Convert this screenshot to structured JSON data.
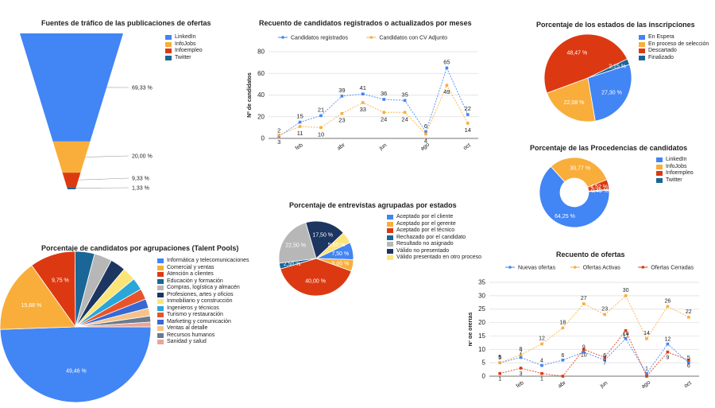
{
  "colors": {
    "blue": "#4285f4",
    "orange": "#f9ae3b",
    "red": "#dc3912",
    "teal": "#1a6696",
    "grid": "#dddddd",
    "axis": "#333333"
  },
  "funnel": {
    "title": "Fuentes de tráfico de las publicaciones de ofertas"
  },
  "line1": {
    "title": "Recuento de candidatos registrados o actualizados por meses",
    "ylabel": "Nº de candidatos"
  },
  "pie_states": {
    "title": "Porcentaje de los estados de las inscripciones"
  },
  "donut": {
    "title": "Porcentaje de las Procedencias de candidatos"
  },
  "pie_interviews": {
    "title": "Porcentaje de entrevistas agrupadas por estados"
  },
  "pie_talent": {
    "title": "Porcentaje de candidatos por agrupaciones (Talent Pools)"
  },
  "line2": {
    "title": "Recuento de ofertas",
    "ylabel": "Nº de ofertas"
  },
  "chart_data": [
    {
      "id": "funnel",
      "type": "funnel",
      "title": "Fuentes de tráfico de las publicaciones de ofertas",
      "categories": [
        "LinkedIn",
        "InfoJobs",
        "Infoempleo",
        "Twitter"
      ],
      "values": [
        69.33,
        20.0,
        9.33,
        1.33
      ],
      "labels": [
        "69,33 %",
        "20,00 %",
        "9,33 %",
        "1,33 %"
      ],
      "colors": [
        "#4285f4",
        "#f9ae3b",
        "#dc3912",
        "#1a6696"
      ],
      "legend": "right"
    },
    {
      "id": "line1",
      "type": "line",
      "title": "Recuento de candidatos registrados o actualizados por meses",
      "ylabel": "Nº de candidatos",
      "xlabel": "",
      "x": [
        "ene",
        "feb",
        "mar",
        "abr",
        "may",
        "jun",
        "jul",
        "ago",
        "sep",
        "oct"
      ],
      "xticks": [
        "feb",
        "abr",
        "jun",
        "ago",
        "oct"
      ],
      "ylim": [
        0,
        80
      ],
      "yticks": [
        0,
        20,
        40,
        60,
        80
      ],
      "grid": true,
      "legend": "top",
      "series": [
        {
          "name": "Candidatos registrados",
          "color": "#4285f4",
          "values": [
            2,
            15,
            21,
            39,
            41,
            36,
            35,
            6,
            65,
            22
          ]
        },
        {
          "name": "Candidatos con CV Adjunto",
          "color": "#f9ae3b",
          "values": [
            3,
            11,
            10,
            23,
            33,
            24,
            24,
            4,
            49,
            14
          ]
        }
      ]
    },
    {
      "id": "pie_states",
      "type": "pie",
      "title": "Porcentaje de los estados de las inscripciones",
      "categories": [
        "En Espera",
        "En proceso de selección",
        "Descartado",
        "Finalizado"
      ],
      "values": [
        27.3,
        22.08,
        48.47,
        2.15
      ],
      "labels": [
        "27,30 %",
        "22,08 %",
        "48,47 %",
        "2,15 %"
      ],
      "colors": [
        "#4285f4",
        "#f9ae3b",
        "#dc3912",
        "#1a6696"
      ],
      "legend": "right"
    },
    {
      "id": "donut",
      "type": "donut",
      "title": "Porcentaje de las Procedencias de candidatos",
      "categories": [
        "LinkedIn",
        "InfoJobs",
        "Infoempleo",
        "Twitter"
      ],
      "values": [
        64.25,
        30.77,
        4.52,
        0.45
      ],
      "labels": [
        "64,25 %",
        "30,77 %",
        "4,52 %",
        "0,45 %"
      ],
      "colors": [
        "#4285f4",
        "#f9ae3b",
        "#dc3912",
        "#1a6696"
      ],
      "legend": "right"
    },
    {
      "id": "pie_interviews",
      "type": "pie",
      "title": "Porcentaje de entrevistas agrupadas por estados",
      "categories": [
        "Aceptado por el cliente",
        "Aceptado por el gerente",
        "Aceptado por el técnico",
        "Rechazado por el candidato",
        "Resultado no asignado",
        "Válido no presentado",
        "Válido presentado en otro proceso"
      ],
      "values": [
        7.5,
        5.0,
        40.0,
        2.5,
        22.5,
        17.5,
        5.0
      ],
      "labels": [
        "7,50 %",
        "5,00 %",
        "40,00 %",
        "2,50 %",
        "22,50 %",
        "17,50 %",
        "5,00 %"
      ],
      "colors": [
        "#4285f4",
        "#f9ae3b",
        "#dc3912",
        "#1a6696",
        "#b7b7b7",
        "#1c3561",
        "#fde479"
      ],
      "legend": "right"
    },
    {
      "id": "pie_talent",
      "type": "pie",
      "title": "Porcentaje de candidatos por agrupaciones (Talent Pools)",
      "categories": [
        "Informática y telecomunicaciones",
        "Comercial y ventas",
        "Atención a clientes",
        "Educación y formación",
        "Compras, logística y almacén",
        "Profesiones, artes y oficios",
        "Inmobiliario y construcción",
        "Ingenieros y técnicos",
        "Turismo y restauración",
        "Marketing y comunicación",
        "Ventas al detalle",
        "Recursos humanos",
        "Sanidad y salud"
      ],
      "values": [
        49.46,
        15.68,
        9.75,
        4.2,
        3.8,
        3.3,
        2.9,
        2.6,
        2.3,
        2.0,
        1.7,
        1.3,
        1.01
      ],
      "labels": [
        "49,46 %",
        "15,68 %",
        "9,75 %",
        "",
        "",
        "",
        "",
        "",
        "",
        "",
        "",
        "",
        ""
      ],
      "colors": [
        "#4285f4",
        "#f9ae3b",
        "#dc3912",
        "#1a6696",
        "#b7b7b7",
        "#1c3561",
        "#fde479",
        "#2aa7d8",
        "#e8542a",
        "#3868d4",
        "#f5c38a",
        "#6b7a8f",
        "#e8a598"
      ],
      "legend": "right"
    },
    {
      "id": "line2",
      "type": "line",
      "title": "Recuento de ofertas",
      "ylabel": "Nº de ofertas",
      "xlabel": "",
      "x": [
        "ene",
        "feb",
        "mar",
        "abr",
        "may",
        "jun",
        "jul",
        "ago",
        "sep",
        "oct"
      ],
      "xticks": [
        "feb",
        "abr",
        "jun",
        "ago",
        "oct"
      ],
      "ylim": [
        0,
        35
      ],
      "yticks": [
        0,
        5,
        10,
        15,
        20,
        25,
        30,
        35
      ],
      "grid": true,
      "legend": "top",
      "series": [
        {
          "name": "Nuevas ofertas",
          "color": "#4285f4",
          "values": [
            5,
            7,
            4,
            6,
            9,
            6,
            14,
            1,
            12,
            5
          ]
        },
        {
          "name": "Ofertas Activas",
          "color": "#f9ae3b",
          "values": [
            5,
            8,
            12,
            18,
            27,
            23,
            30,
            14,
            26,
            22
          ]
        },
        {
          "name": "Ofertas Cerradas",
          "color": "#dc3912",
          "values": [
            1,
            3,
            1,
            0,
            10,
            7,
            17,
            0,
            9,
            6
          ]
        }
      ],
      "labels": [
        {
          "series": 0,
          "values": [
            "5",
            "7",
            "4",
            "6",
            "9",
            "6",
            "14",
            "1",
            "12",
            "5"
          ]
        },
        {
          "series": 1,
          "values": [
            "5",
            "8",
            "12",
            "18",
            "27",
            "23",
            "30",
            "14",
            "26",
            "22"
          ]
        },
        {
          "series": 2,
          "values": [
            "1",
            "3",
            "1",
            "",
            "10",
            "7",
            "17",
            "",
            "9",
            "6"
          ]
        }
      ]
    }
  ]
}
